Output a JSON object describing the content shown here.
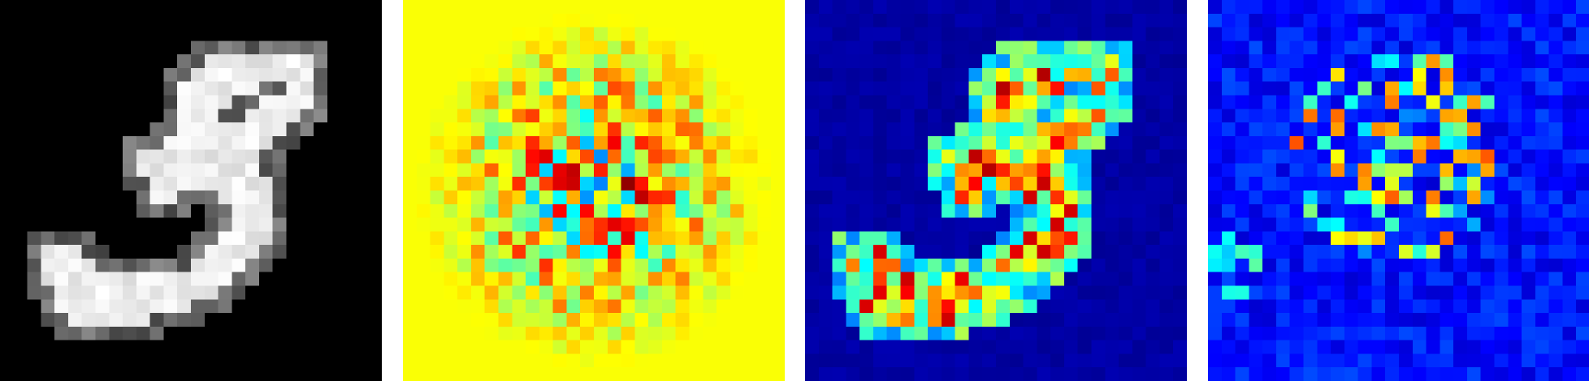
{
  "panels": [
    {
      "name": "input-digit-image",
      "colormap": "gray",
      "seed": 1
    },
    {
      "name": "signed-attribution-map",
      "colormap": "jet",
      "seed": 2
    },
    {
      "name": "positive-saliency-map",
      "colormap": "jet",
      "seed": 3
    },
    {
      "name": "gradient-magnitude-map",
      "colormap": "jet",
      "seed": 4
    }
  ],
  "colors": {
    "background": "#ffffff",
    "jet_low": "#00008f",
    "jet_high": "#800000",
    "neutral_green": "#b0ff50"
  }
}
